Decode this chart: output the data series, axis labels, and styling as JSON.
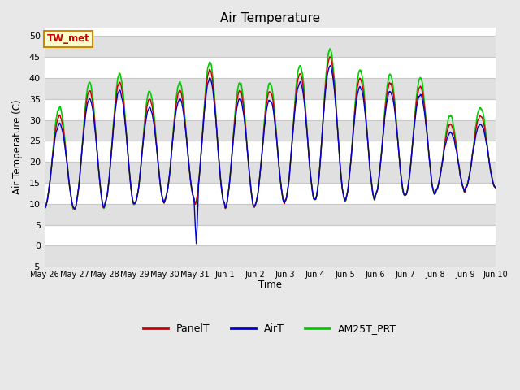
{
  "title": "Air Temperature",
  "ylabel": "Air Temperature (C)",
  "xlabel": "Time",
  "ylim": [
    -5,
    52
  ],
  "yticks": [
    -5,
    0,
    5,
    10,
    15,
    20,
    25,
    30,
    35,
    40,
    45,
    50
  ],
  "legend_labels": [
    "PanelT",
    "AirT",
    "AM25T_PRT"
  ],
  "line_colors": [
    "#cc0000",
    "#0000cc",
    "#00cc00"
  ],
  "site_label": "TW_met",
  "site_label_color": "#cc0000",
  "site_label_bg": "#ffffcc",
  "site_label_border": "#cc8800",
  "fig_bg_color": "#e8e8e8",
  "plot_bg_color": "#ffffff",
  "gray_band_color": "#e0e0e0",
  "grid_line_color": "#c8c8c8",
  "xtick_labels": [
    "May 26",
    "May 27",
    "May 28",
    "May 29",
    "May 30",
    "May 31",
    "Jun 1",
    "Jun 2",
    "Jun 3",
    "Jun 4",
    "Jun 5",
    "Jun 6",
    "Jun 7",
    "Jun 8",
    "Jun 9",
    "Jun 10"
  ],
  "xtick_positions": [
    0,
    1,
    2,
    3,
    4,
    5,
    6,
    7,
    8,
    9,
    10,
    11,
    12,
    13,
    14,
    15
  ],
  "daily_mins": [
    9,
    9,
    10,
    10,
    11,
    10,
    9,
    10,
    11,
    11,
    11,
    12,
    12,
    13,
    14
  ],
  "daily_maxs": [
    31,
    37,
    39,
    35,
    37,
    42,
    37,
    37,
    41,
    45,
    40,
    39,
    38,
    29,
    31
  ],
  "air_offset": [
    -2,
    -2,
    -2,
    -2,
    -2,
    -2,
    -2,
    -2,
    -2,
    -2,
    -2,
    -2,
    -2,
    -2,
    -2
  ],
  "am25_offset": [
    1,
    1,
    1,
    1,
    1,
    1,
    1,
    1,
    1,
    1,
    1,
    1,
    1,
    1,
    1
  ],
  "spike_day": 5,
  "spike_value": 0.5,
  "pts_per_day": 144
}
